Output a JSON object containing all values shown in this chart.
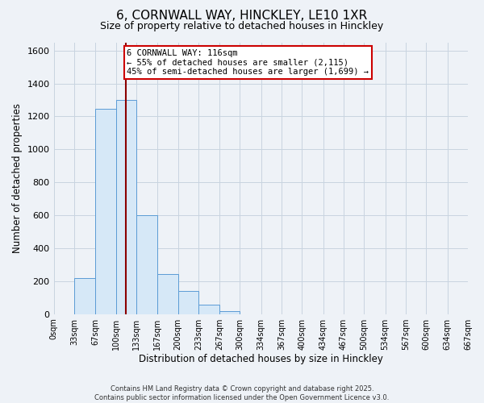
{
  "title_line1": "6, CORNWALL WAY, HINCKLEY, LE10 1XR",
  "title_line2": "Size of property relative to detached houses in Hinckley",
  "xlabel": "Distribution of detached houses by size in Hinckley",
  "ylabel": "Number of detached properties",
  "bar_values": [
    0,
    220,
    1245,
    1300,
    600,
    245,
    140,
    55,
    20,
    0,
    0,
    0,
    0,
    0,
    0,
    0,
    0,
    0,
    0,
    0
  ],
  "bin_edges": [
    0,
    33,
    67,
    100,
    133,
    167,
    200,
    233,
    267,
    300,
    334,
    367,
    400,
    434,
    467,
    500,
    534,
    567,
    600,
    634,
    667
  ],
  "tick_labels": [
    "0sqm",
    "33sqm",
    "67sqm",
    "100sqm",
    "133sqm",
    "167sqm",
    "200sqm",
    "233sqm",
    "267sqm",
    "300sqm",
    "334sqm",
    "367sqm",
    "400sqm",
    "434sqm",
    "467sqm",
    "500sqm",
    "534sqm",
    "567sqm",
    "600sqm",
    "634sqm",
    "667sqm"
  ],
  "bar_color": "#d6e8f7",
  "bar_edgecolor": "#5b9bd5",
  "annotation_text": "6 CORNWALL WAY: 116sqm\n← 55% of detached houses are smaller (2,115)\n45% of semi-detached houses are larger (1,699) →",
  "vline_x": 116,
  "vline_color": "#8b0000",
  "annotation_box_edgecolor": "#cc0000",
  "annotation_box_facecolor": "#ffffff",
  "ylim": [
    0,
    1650
  ],
  "xlim": [
    0,
    667
  ],
  "footer_line1": "Contains HM Land Registry data © Crown copyright and database right 2025.",
  "footer_line2": "Contains public sector information licensed under the Open Government Licence v3.0.",
  "background_color": "#eef2f7",
  "plot_bg_color": "#eef2f7",
  "grid_color": "#c8d4e0",
  "title_fontsize": 11,
  "subtitle_fontsize": 9,
  "tick_fontsize": 7,
  "ylabel_fontsize": 8.5,
  "xlabel_fontsize": 8.5,
  "annotation_fontsize": 7.5,
  "footer_fontsize": 6,
  "ytick_fontsize": 8
}
